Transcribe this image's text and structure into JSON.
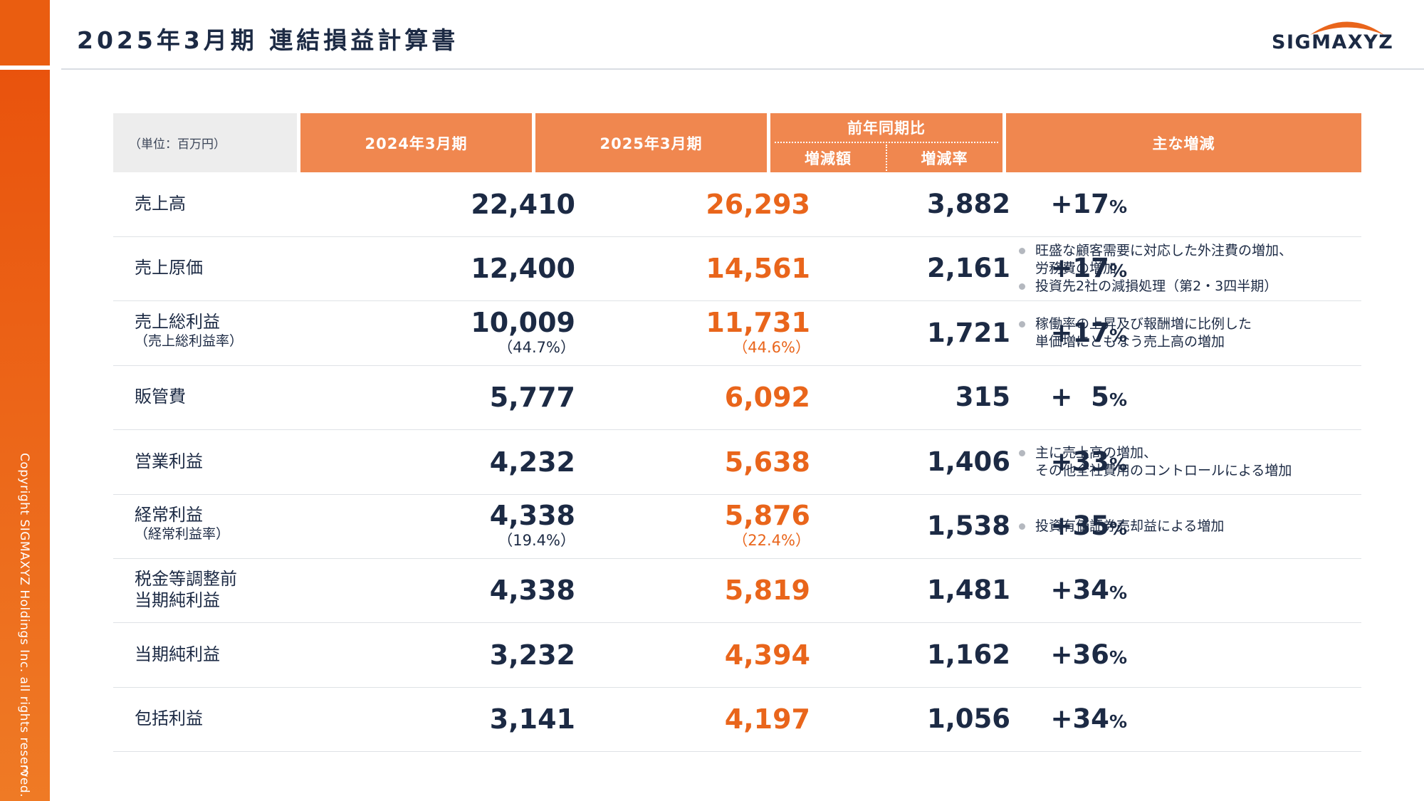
{
  "page": {
    "title": "2025年3月期 連結損益計算書",
    "logo_text": "SIGMAXYZ",
    "copyright": "Copyright SIGMAXYZ Holdings Inc. all rights reserved.",
    "page_number": "3",
    "accent_color": "#ea5d10"
  },
  "table": {
    "headers": {
      "unit": "（単位：百万円）",
      "fy2024": "2024年3月期",
      "fy2025": "2025年3月期",
      "comparison": "前年同期比",
      "diff": "増減額",
      "rate": "増減率",
      "notes": "主な増減"
    },
    "rows": [
      {
        "label": "売上高",
        "sublabel": "",
        "fy2024": "22,410",
        "fy2024_ratio": "",
        "fy2025": "26,293",
        "fy2025_ratio": "",
        "diff": "3,882",
        "rate": "+17",
        "notes": []
      },
      {
        "label": "売上原価",
        "sublabel": "",
        "fy2024": "12,400",
        "fy2024_ratio": "",
        "fy2025": "14,561",
        "fy2025_ratio": "",
        "diff": "2,161",
        "rate": "+17",
        "notes": [
          "旺盛な顧客需要に対応した外注費の増加、\n労務費の増加",
          "投資先2社の減損処理（第2・3四半期）"
        ]
      },
      {
        "label": "売上総利益",
        "sublabel": "（売上総利益率）",
        "fy2024": "10,009",
        "fy2024_ratio": "（44.7%）",
        "fy2025": "11,731",
        "fy2025_ratio": "（44.6%）",
        "diff": "1,721",
        "rate": "+17",
        "notes": [
          "稼働率の上昇及び報酬増に比例した\n単価増にともなう売上高の増加"
        ]
      },
      {
        "label": "販管費",
        "sublabel": "",
        "fy2024": "5,777",
        "fy2024_ratio": "",
        "fy2025": "6,092",
        "fy2025_ratio": "",
        "diff": "315",
        "rate": "+  5",
        "notes": []
      },
      {
        "label": "営業利益",
        "sublabel": "",
        "fy2024": "4,232",
        "fy2024_ratio": "",
        "fy2025": "5,638",
        "fy2025_ratio": "",
        "diff": "1,406",
        "rate": "+33",
        "notes": [
          "主に売上高の増加、\nその他全社費用のコントロールによる増加"
        ]
      },
      {
        "label": "経常利益",
        "sublabel": "（経常利益率）",
        "fy2024": "4,338",
        "fy2024_ratio": "（19.4%）",
        "fy2025": "5,876",
        "fy2025_ratio": "（22.4%）",
        "diff": "1,538",
        "rate": "+35",
        "notes": [
          "投資有価証券売却益による増加"
        ]
      },
      {
        "label": "税金等調整前\n当期純利益",
        "sublabel": "",
        "fy2024": "4,338",
        "fy2024_ratio": "",
        "fy2025": "5,819",
        "fy2025_ratio": "",
        "diff": "1,481",
        "rate": "+34",
        "notes": []
      },
      {
        "label": "当期純利益",
        "sublabel": "",
        "fy2024": "3,232",
        "fy2024_ratio": "",
        "fy2025": "4,394",
        "fy2025_ratio": "",
        "diff": "1,162",
        "rate": "+36",
        "notes": []
      },
      {
        "label": "包括利益",
        "sublabel": "",
        "fy2024": "3,141",
        "fy2024_ratio": "",
        "fy2025": "4,197",
        "fy2025_ratio": "",
        "diff": "1,056",
        "rate": "+34",
        "notes": []
      }
    ],
    "percent_sign": "%"
  }
}
